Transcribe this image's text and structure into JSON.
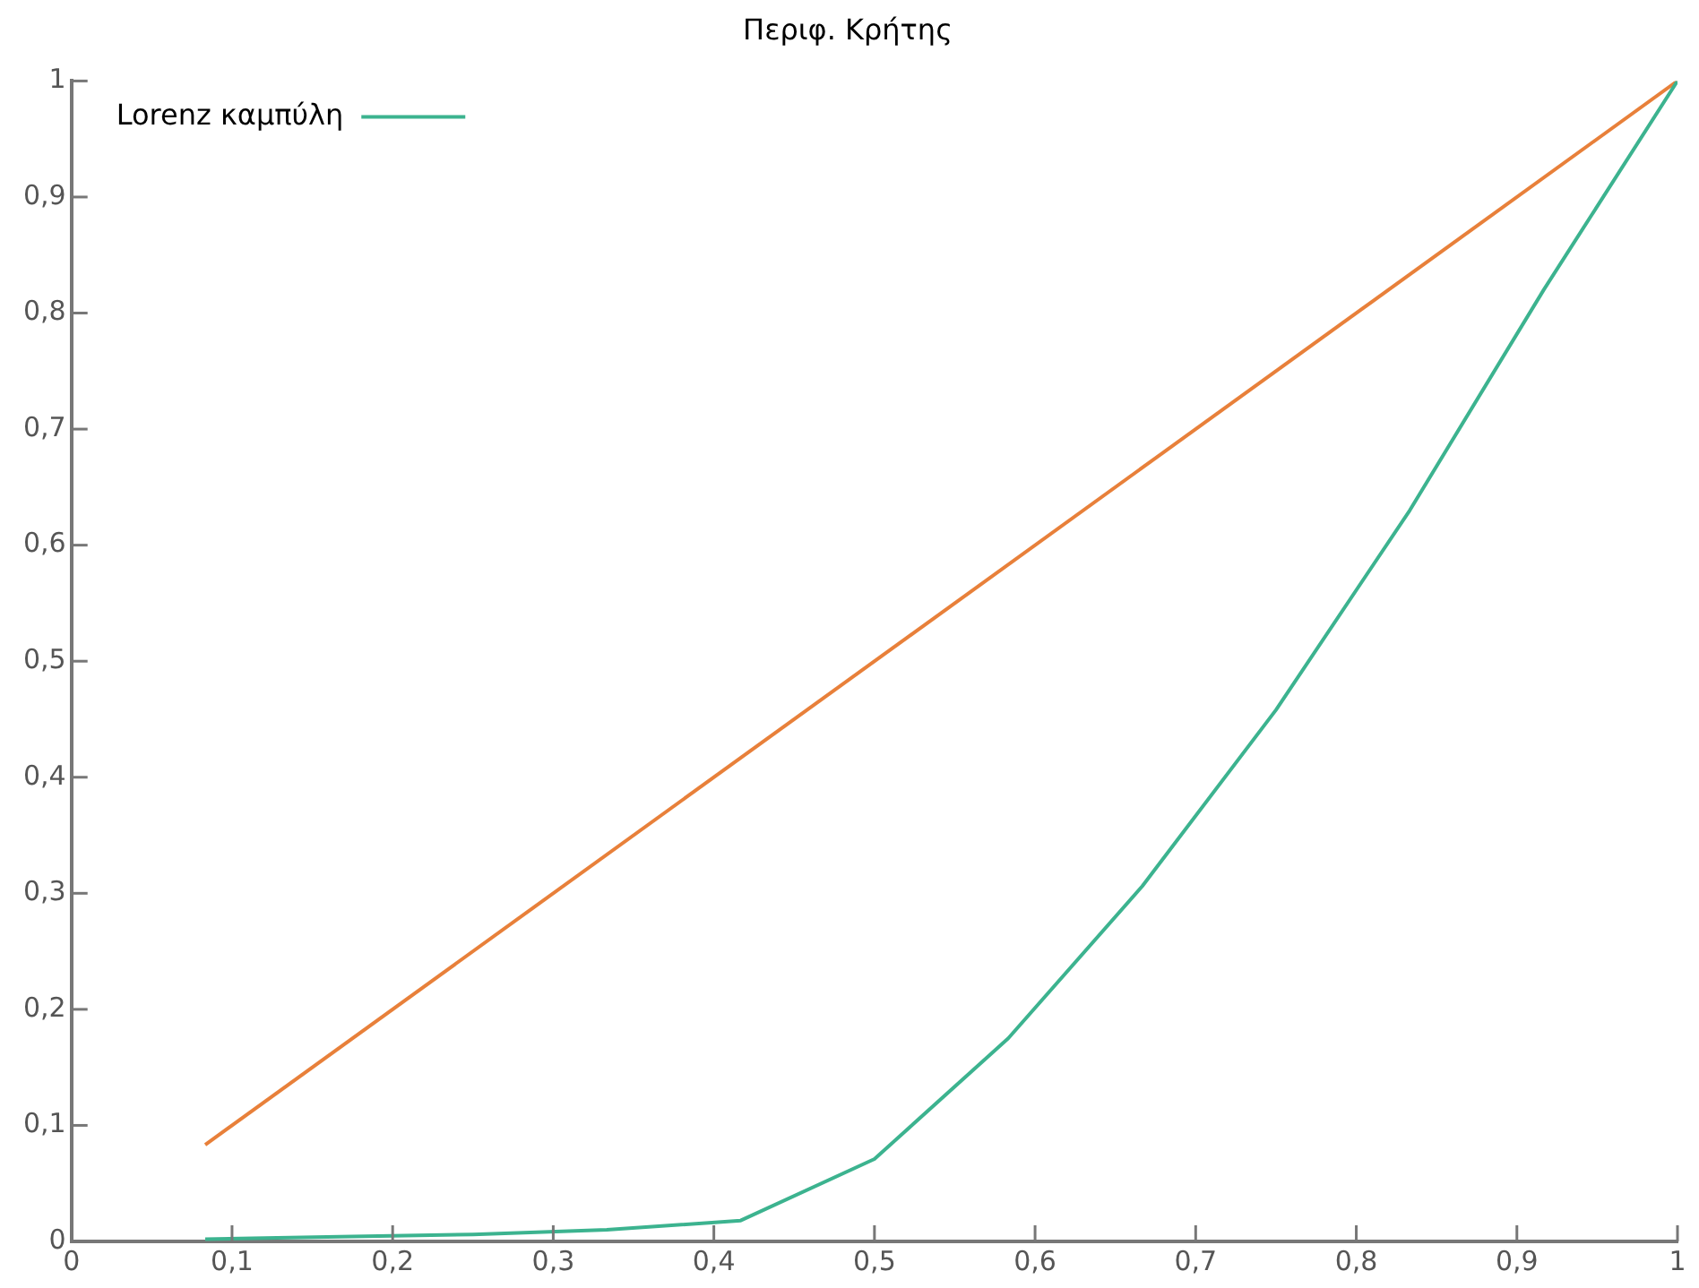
{
  "chart_data": {
    "type": "line",
    "title": "Περιφ. Κρήτης",
    "x": [
      0.0833,
      0.1667,
      0.25,
      0.3333,
      0.4167,
      0.5,
      0.5833,
      0.6667,
      0.75,
      0.8333,
      0.9167,
      1
    ],
    "series": [
      {
        "name": "Lorenz καμπύλη",
        "color": "#3cb38f",
        "values": [
          0.002,
          0.004,
          0.006,
          0.01,
          0.018,
          0.071,
          0.175,
          0.306,
          0.458,
          0.63,
          0.82,
          1
        ]
      },
      {
        "color": "#e8803a",
        "x": [
          0.0833,
          1
        ],
        "values": [
          0.0833,
          1
        ]
      }
    ],
    "xlim": [
      0,
      1
    ],
    "ylim": [
      0,
      1
    ],
    "xticks": [
      0,
      {
        "value": 0.1,
        "label": "0,1"
      },
      {
        "value": 0.2,
        "label": "0,2"
      },
      {
        "value": 0.3,
        "label": "0,3"
      },
      {
        "value": 0.4,
        "label": "0,4"
      },
      {
        "value": 0.5,
        "label": "0,5"
      },
      {
        "value": 0.6,
        "label": "0,6"
      },
      {
        "value": 0.7,
        "label": "0,7"
      },
      {
        "value": 0.8,
        "label": "0,8"
      },
      {
        "value": 0.9,
        "label": "0,9"
      },
      1
    ],
    "yticks": [
      0,
      {
        "value": 0.1,
        "label": "0,1"
      },
      {
        "value": 0.2,
        "label": "0,2"
      },
      {
        "value": 0.3,
        "label": "0,3"
      },
      {
        "value": 0.4,
        "label": "0,4"
      },
      {
        "value": 0.5,
        "label": "0,5"
      },
      {
        "value": 0.6,
        "label": "0,6"
      },
      {
        "value": 0.7,
        "label": "0,7"
      },
      {
        "value": 0.8,
        "label": "0,8"
      },
      {
        "value": 0.9,
        "label": "0,9"
      },
      1
    ],
    "legend": "top left",
    "grid": false,
    "marker": "none",
    "line_style": "solid"
  }
}
